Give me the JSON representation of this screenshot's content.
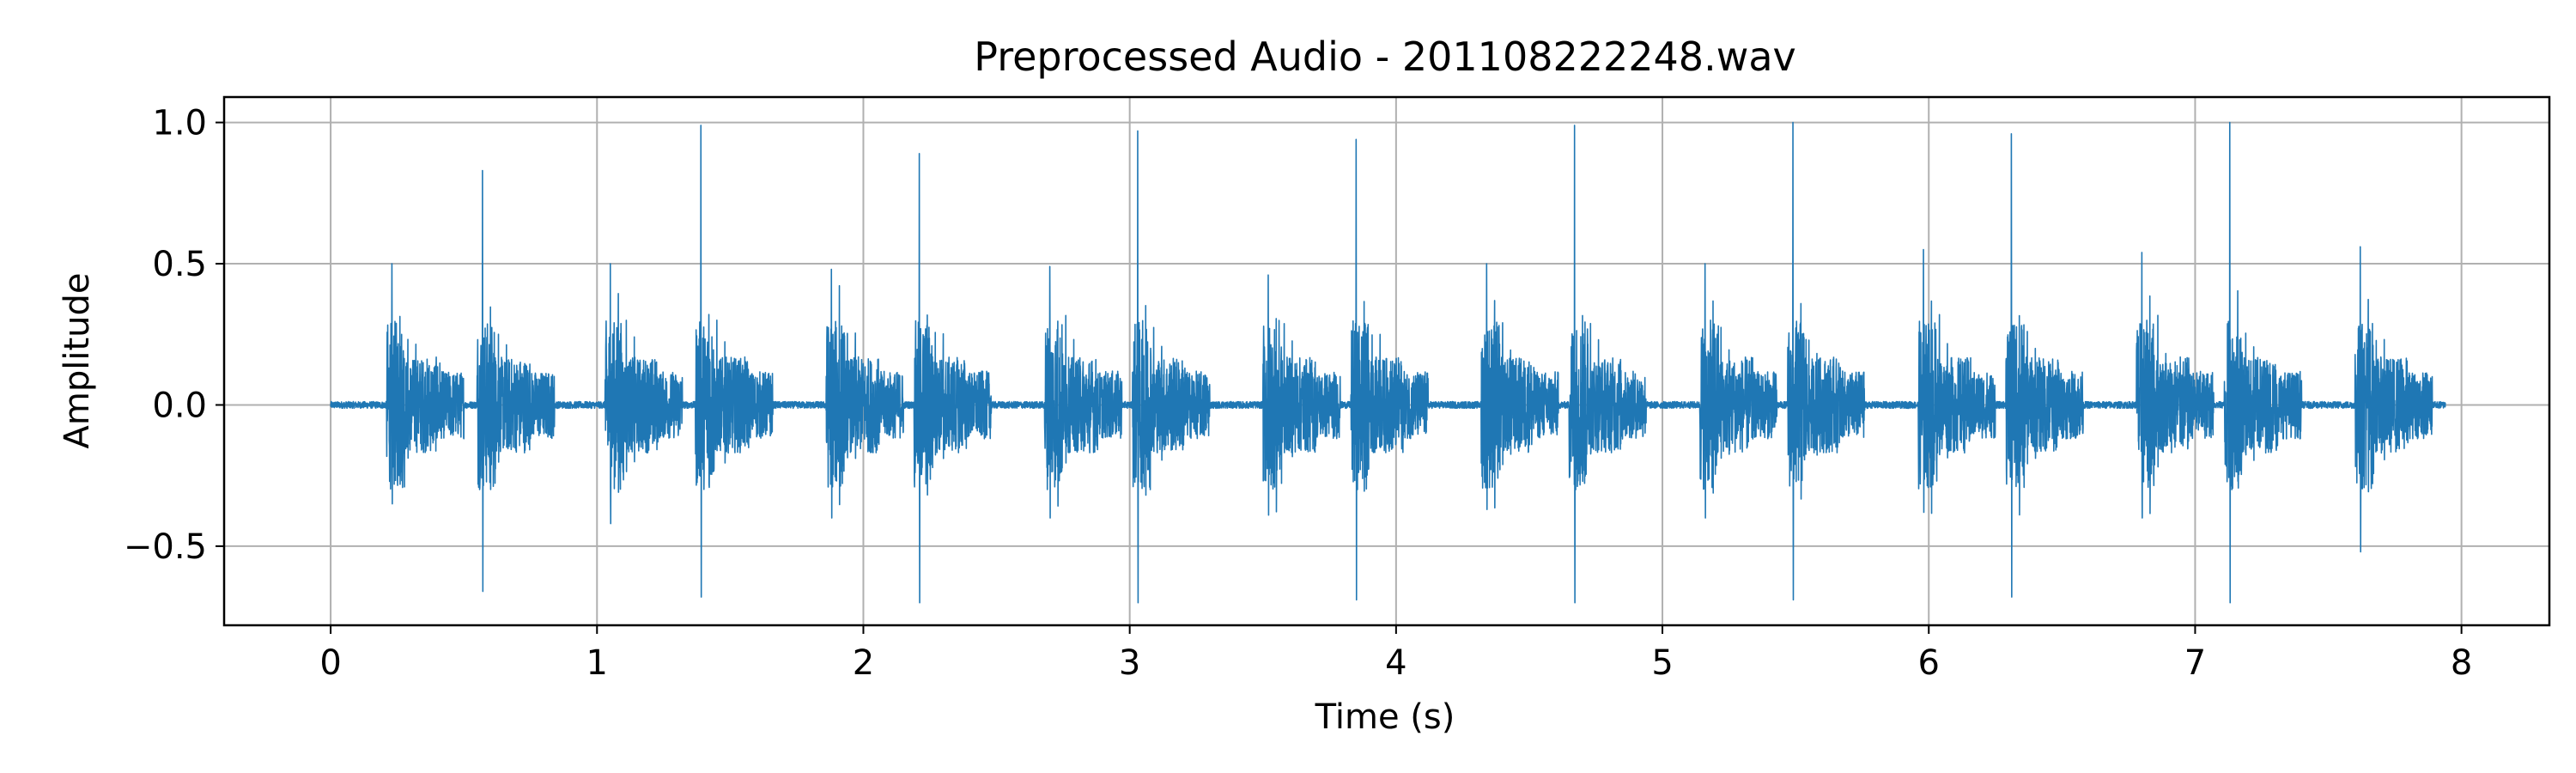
{
  "chart_data": {
    "type": "line",
    "title": "Preprocessed Audio - 201108222248.wav",
    "xlabel": "Time (s)",
    "ylabel": "Amplitude",
    "xlim": [
      -0.4,
      8.33
    ],
    "ylim": [
      -0.78,
      1.09
    ],
    "xticks": [
      0,
      1,
      2,
      3,
      4,
      5,
      6,
      7,
      8
    ],
    "xtick_labels": [
      "0",
      "1",
      "2",
      "3",
      "4",
      "5",
      "6",
      "7",
      "8"
    ],
    "yticks": [
      -0.5,
      0.0,
      0.5,
      1.0
    ],
    "ytick_labels": [
      "−0.5",
      "0.0",
      "0.5",
      "1.0"
    ],
    "grid": true,
    "line_color": "#1f77b4",
    "series": [
      {
        "duration": 7.94,
        "events": [
          {
            "t": 0.23,
            "pos": 0.5,
            "neg": -0.35
          },
          {
            "t": 0.57,
            "pos": 0.83,
            "neg": -0.66
          },
          {
            "t": 1.05,
            "pos": 0.5,
            "neg": -0.42
          },
          {
            "t": 1.39,
            "pos": 0.99,
            "neg": -0.68
          },
          {
            "t": 1.88,
            "pos": 0.48,
            "neg": -0.4
          },
          {
            "t": 2.21,
            "pos": 0.89,
            "neg": -0.7
          },
          {
            "t": 2.7,
            "pos": 0.49,
            "neg": -0.4
          },
          {
            "t": 3.03,
            "pos": 0.97,
            "neg": -0.7
          },
          {
            "t": 3.52,
            "pos": 0.46,
            "neg": -0.39
          },
          {
            "t": 3.85,
            "pos": 0.94,
            "neg": -0.69
          },
          {
            "t": 4.34,
            "pos": 0.5,
            "neg": -0.37
          },
          {
            "t": 4.67,
            "pos": 0.99,
            "neg": -0.7
          },
          {
            "t": 5.16,
            "pos": 0.5,
            "neg": -0.4
          },
          {
            "t": 5.49,
            "pos": 1.0,
            "neg": -0.69
          },
          {
            "t": 5.98,
            "pos": 0.55,
            "neg": -0.38
          },
          {
            "t": 6.31,
            "pos": 0.96,
            "neg": -0.68
          },
          {
            "t": 6.8,
            "pos": 0.54,
            "neg": -0.4
          },
          {
            "t": 7.13,
            "pos": 1.0,
            "neg": -0.7
          },
          {
            "t": 7.62,
            "pos": 0.56,
            "neg": -0.52
          }
        ]
      }
    ]
  }
}
